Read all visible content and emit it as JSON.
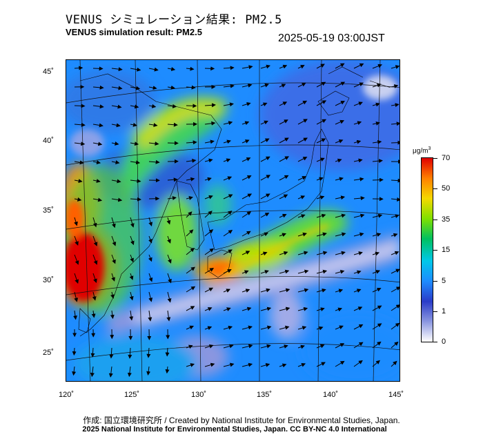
{
  "header": {
    "title_ja": "VENUS シミュレーション結果: PM2.5",
    "title_en": "VENUS simulation result: PM2.5",
    "datetime": "2025-05-19 03:00JST"
  },
  "map": {
    "region": "East Asia / Japan",
    "lon_labels": [
      "120˚",
      "125˚",
      "130˚",
      "135˚",
      "140˚",
      "145˚"
    ],
    "lat_labels": [
      "45˚",
      "40˚",
      "35˚",
      "30˚",
      "25˚"
    ],
    "lon_range": [
      120,
      145
    ],
    "lat_range": [
      23,
      46
    ],
    "field": "PM2.5 concentration",
    "overlay": "wind vectors (arrows)"
  },
  "colorbar": {
    "unit": "μg/m3",
    "ticks": [
      "70",
      "50",
      "35",
      "15",
      "5",
      "1",
      "0"
    ],
    "colors": [
      "#e00000",
      "#ff8000",
      "#f5d800",
      "#80e000",
      "#00c060",
      "#00c8e8",
      "#1e8cff",
      "#2a3cc8",
      "#8a96e0",
      "#ffffff"
    ]
  },
  "footer": {
    "credit_ja": "作成: 国立環境研究所 / Created by National Institute for Environmental Studies, Japan.",
    "credit_en": "2025 National Institute for Environmental Studies, Japan. CC BY-NC 4.0 International"
  }
}
